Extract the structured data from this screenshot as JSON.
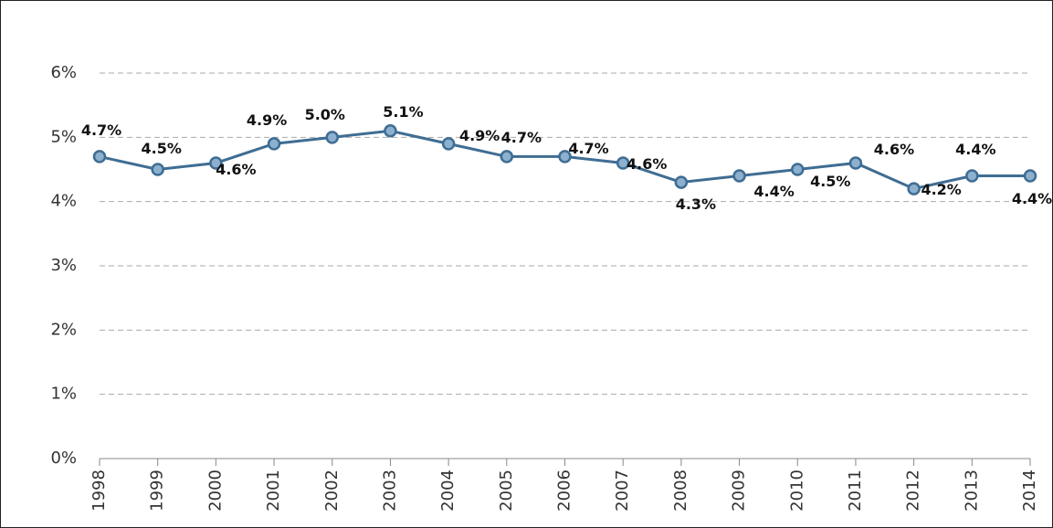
{
  "chart_data": {
    "type": "line",
    "categories": [
      "1998",
      "1999",
      "2000",
      "2001",
      "2002",
      "2003",
      "2004",
      "2005",
      "2006",
      "2007",
      "2008",
      "2009",
      "2010",
      "2011",
      "2012",
      "2013",
      "2014"
    ],
    "series": [
      {
        "color": "#3f6d93",
        "marker_color": "#8db0cf",
        "values": [
          4.7,
          4.5,
          4.6,
          4.9,
          5.0,
          5.1,
          4.9,
          4.7,
          4.7,
          4.6,
          4.3,
          4.4,
          4.5,
          4.6,
          4.2,
          4.4,
          4.4
        ],
        "value_labels": [
          "4.7%",
          "4.5%",
          "4.6%",
          "4.9%",
          "5.0%",
          "5.1%",
          "4.9%",
          "4.7%",
          "4.7%",
          "4.6%",
          "4.3%",
          "4.4%",
          "4.5%",
          "4.6%",
          "4.2%",
          "4.4%",
          "4.4%"
        ]
      }
    ],
    "ylim": [
      0,
      6
    ],
    "yticks": [
      {
        "value": 0,
        "label": "0%"
      },
      {
        "value": 1,
        "label": "1%"
      },
      {
        "value": 2,
        "label": "2%"
      },
      {
        "value": 3,
        "label": "3%"
      },
      {
        "value": 4,
        "label": "4%"
      },
      {
        "value": 5,
        "label": "5%"
      },
      {
        "value": 6,
        "label": "6%"
      }
    ],
    "grid": true
  }
}
